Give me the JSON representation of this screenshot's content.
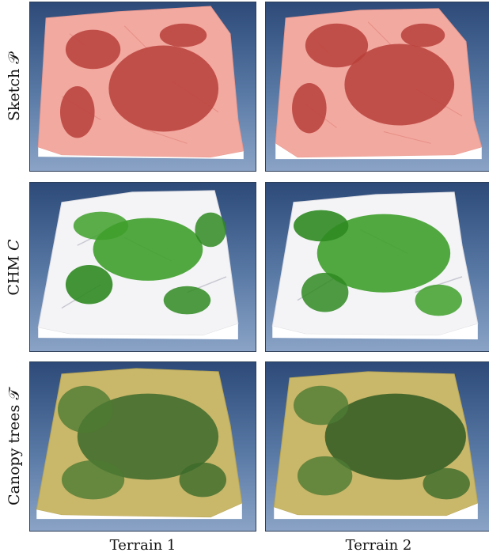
{
  "rows": [
    {
      "label": "Sketch 𝒫"
    },
    {
      "label": "CHM 𝐶"
    },
    {
      "label": "Canopy trees 𝒯"
    }
  ],
  "columns": [
    {
      "label": "Terrain 1"
    },
    {
      "label": "Terrain 2"
    }
  ],
  "colors": {
    "background_top": "#2d4a78",
    "background_bottom": "#8aa3c6",
    "sketch_terrain": "#f2a9a0",
    "sketch_regions": "#b8403a",
    "chm_snow": "#f4f4f6",
    "chm_canopy": "#3fa02c",
    "canopy_ground": "#c9b76a",
    "canopy_trees": "#3c6a2a"
  }
}
